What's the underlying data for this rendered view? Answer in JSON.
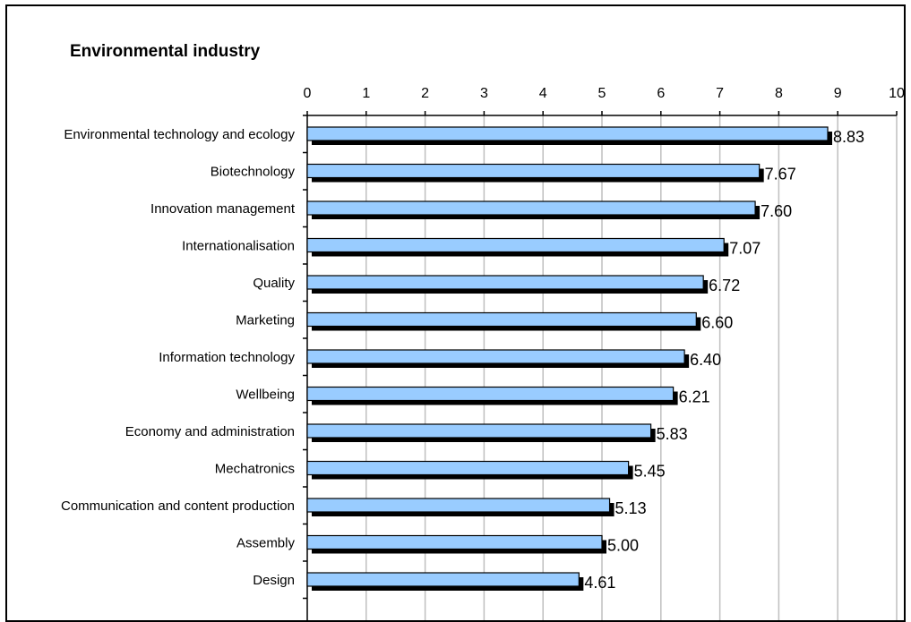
{
  "chart_data": {
    "type": "bar",
    "orientation": "horizontal",
    "title": "Environmental industry",
    "xlim": [
      0,
      10
    ],
    "xticks": [
      0,
      1,
      2,
      3,
      4,
      5,
      6,
      7,
      8,
      9,
      10
    ],
    "xtick_position": "top",
    "grid": true,
    "categories": [
      "Environmental technology and ecology",
      "Biotechnology",
      "Innovation management",
      "Internationalisation",
      "Quality",
      "Marketing",
      "Information technology",
      "Wellbeing",
      "Economy and administration",
      "Mechatronics",
      "Communication and content production",
      "Assembly",
      "Design"
    ],
    "values": [
      8.83,
      7.67,
      7.6,
      7.07,
      6.72,
      6.6,
      6.4,
      6.21,
      5.83,
      5.45,
      5.13,
      5.0,
      4.61
    ],
    "value_labels": [
      "8.83",
      "7.67",
      "7.60",
      "7.07",
      "6.72",
      "6.60",
      "6.40",
      "6.21",
      "5.83",
      "5.45",
      "5.13",
      "5.00",
      "4.61"
    ],
    "colors": {
      "bar_fill": "#99ccff",
      "bar_shadow": "#000000",
      "grid": "#bfbfbf",
      "axis": "#000000"
    }
  }
}
